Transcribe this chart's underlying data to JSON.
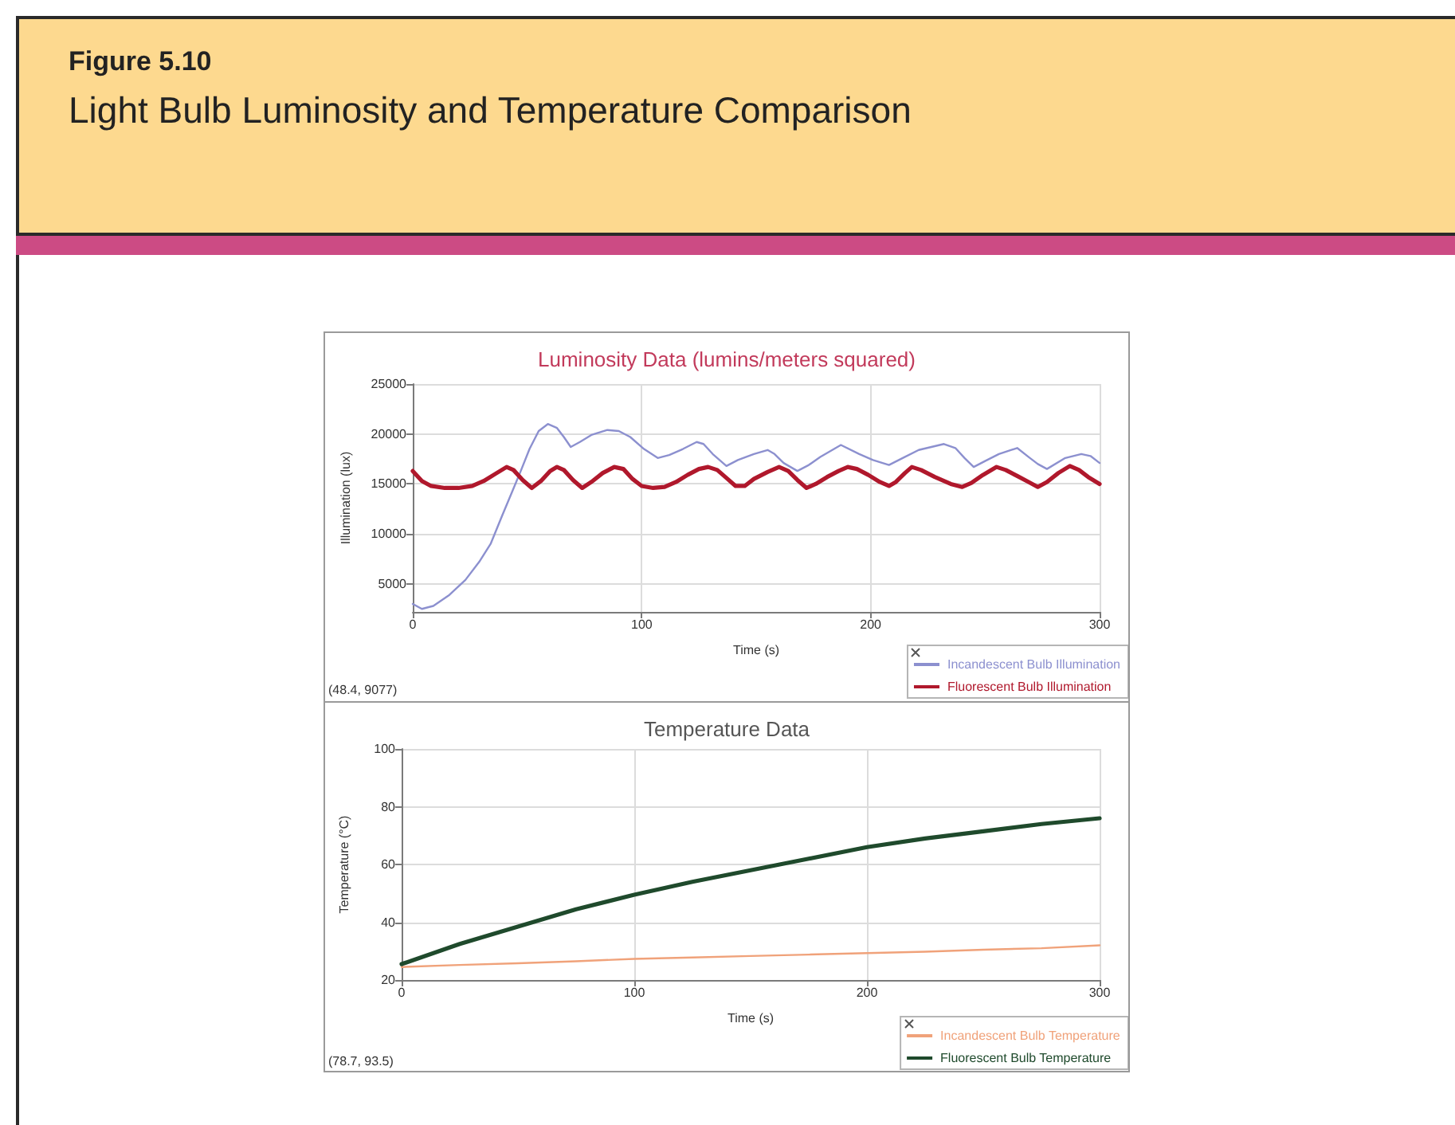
{
  "chart_data": [
    {
      "type": "other",
      "title": "Figure 5.10",
      "subtitle": "Light Bulb Luminosity and Temperature Comparison"
    },
    {
      "type": "line",
      "title": "Luminosity Data (lumins/meters squared)",
      "xlabel": "Time (s)",
      "ylabel": "Illumination (lux)",
      "xlim": [
        0,
        300
      ],
      "xticks": [
        0,
        100,
        200,
        300
      ],
      "ylim": [
        2200,
        25000
      ],
      "yticks": [
        5000,
        10000,
        15000,
        20000,
        25000
      ],
      "grid": true,
      "legend": "bottom right",
      "marker": "none",
      "annotations": [
        "(48.4, 9077)"
      ],
      "series": [
        {
          "name": "Incandescent Bulb Illumination",
          "color": "#8c90cf",
          "x": [
            0,
            4,
            9,
            16,
            23,
            29,
            34,
            39,
            43,
            47,
            51,
            55,
            59,
            63,
            66,
            69,
            73,
            78,
            85,
            90,
            95,
            101,
            107,
            112,
            118,
            124,
            127,
            131,
            137,
            142,
            149,
            155,
            158,
            162,
            168,
            173,
            178,
            187,
            195,
            201,
            208,
            214,
            221,
            232,
            237,
            241,
            245,
            250,
            256,
            264,
            269,
            273,
            277,
            285,
            292,
            296,
            300
          ],
          "values": [
            3000,
            2500,
            2800,
            3900,
            5400,
            7200,
            9000,
            11800,
            14000,
            16200,
            18500,
            20300,
            21000,
            20600,
            19700,
            18700,
            19200,
            19900,
            20400,
            20300,
            19700,
            18500,
            17600,
            17900,
            18500,
            19200,
            19000,
            18000,
            16800,
            17400,
            18000,
            18400,
            18000,
            17100,
            16300,
            16900,
            17700,
            18900,
            18000,
            17400,
            16900,
            17600,
            18400,
            19000,
            18600,
            17600,
            16700,
            17300,
            18000,
            18600,
            17700,
            17000,
            16500,
            17600,
            18000,
            17800,
            17100
          ]
        },
        {
          "name": "Fluorescent Bulb Illumination",
          "color": "#b0182c",
          "x": [
            0,
            4,
            8,
            14,
            20,
            26,
            31,
            36,
            41,
            44,
            48,
            52,
            56,
            60,
            63,
            66,
            70,
            74,
            78,
            83,
            88,
            92,
            96,
            100,
            105,
            110,
            115,
            120,
            125,
            129,
            133,
            137,
            141,
            145,
            149,
            155,
            160,
            164,
            168,
            172,
            176,
            181,
            186,
            190,
            194,
            199,
            204,
            208,
            211,
            215,
            218,
            222,
            228,
            235,
            240,
            244,
            249,
            255,
            259,
            264,
            269,
            273,
            277,
            282,
            287,
            291,
            295,
            300
          ],
          "values": [
            16300,
            15300,
            14800,
            14600,
            14600,
            14800,
            15300,
            16000,
            16700,
            16400,
            15400,
            14600,
            15300,
            16300,
            16700,
            16400,
            15400,
            14600,
            15200,
            16100,
            16700,
            16500,
            15500,
            14800,
            14600,
            14700,
            15200,
            15900,
            16500,
            16700,
            16400,
            15600,
            14800,
            14800,
            15500,
            16200,
            16700,
            16300,
            15400,
            14600,
            15000,
            15700,
            16300,
            16700,
            16500,
            15900,
            15200,
            14800,
            15200,
            16100,
            16700,
            16400,
            15700,
            15000,
            14700,
            15100,
            15900,
            16700,
            16400,
            15800,
            15200,
            14700,
            15200,
            16100,
            16800,
            16400,
            15700,
            15000
          ]
        }
      ]
    },
    {
      "type": "line",
      "title": "Temperature Data",
      "xlabel": "Time (s)",
      "ylabel": "Temperature (°C)",
      "xlim": [
        0,
        300
      ],
      "xticks": [
        0,
        100,
        200,
        300
      ],
      "ylim": [
        20,
        100
      ],
      "yticks": [
        20,
        40,
        60,
        80,
        100
      ],
      "grid": true,
      "legend": "bottom right",
      "marker": "none",
      "annotations": [
        "(78.7, 93.5)"
      ],
      "x": [
        0,
        25,
        50,
        75,
        100,
        125,
        150,
        175,
        200,
        225,
        250,
        275,
        300
      ],
      "series": [
        {
          "name": "Incandescent Bulb Temperature",
          "color": "#f0a27a",
          "values": [
            24.5,
            25.2,
            25.8,
            26.5,
            27.3,
            27.8,
            28.3,
            28.8,
            29.3,
            29.8,
            30.5,
            31,
            32
          ]
        },
        {
          "name": "Fluorescent Bulb Temperature",
          "color": "#1f4a2c",
          "values": [
            25.5,
            32.5,
            38.5,
            44.5,
            49.5,
            54,
            58,
            62,
            66,
            69,
            71.5,
            74,
            76
          ]
        }
      ]
    }
  ]
}
